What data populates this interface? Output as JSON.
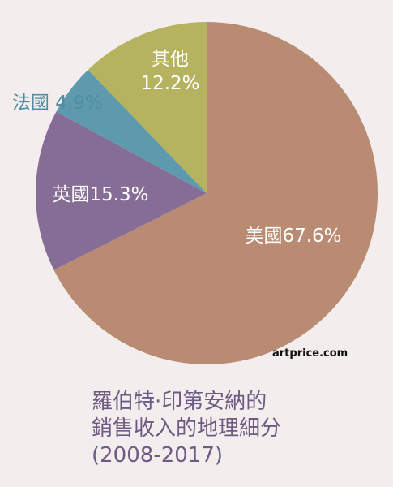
{
  "chart_data": {
    "type": "pie",
    "slices": [
      {
        "label": "美國",
        "value": 67.6,
        "display": "美國67.6%",
        "color": "#b98b72",
        "label_color": "#ffffff"
      },
      {
        "label": "英國",
        "value": 15.3,
        "display": "英國15.3%",
        "color": "#866d96",
        "label_color": "#ffffff"
      },
      {
        "label": "法國",
        "value": 4.9,
        "display": "法國 4.9%",
        "color": "#5e9aad",
        "label_color": "#4f8da1"
      },
      {
        "label": "其他",
        "value": 12.2,
        "display": [
          "其他",
          "12.2%"
        ],
        "color": "#b5b35f",
        "label_color": "#ffffff"
      }
    ],
    "start_angle_deg": 0,
    "direction": "clockwise",
    "title": "",
    "legend": "none"
  },
  "source": "artprice.com",
  "caption": {
    "line1": "羅伯特·印第安納的",
    "line2": "銷售收入的地理細分",
    "line3": "(2008-2017)"
  },
  "colors": {
    "background": "#f3eeed",
    "caption": "#6e5b83"
  }
}
